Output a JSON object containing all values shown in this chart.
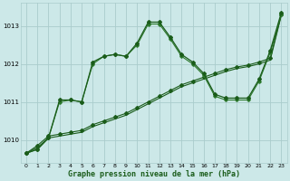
{
  "title": "Graphe pression niveau de la mer (hPa)",
  "background_color": "#cce8e8",
  "grid_color": "#aacccc",
  "line_color_dark": "#1a5c1a",
  "line_color_mid": "#2d7a2d",
  "xlim": [
    -0.5,
    23.5
  ],
  "ylim": [
    1009.4,
    1013.6
  ],
  "yticks": [
    1010,
    1011,
    1012,
    1013
  ],
  "xticks": [
    0,
    1,
    2,
    3,
    4,
    5,
    6,
    7,
    8,
    9,
    10,
    11,
    12,
    13,
    14,
    15,
    16,
    17,
    18,
    19,
    20,
    21,
    22,
    23
  ],
  "s1_x": [
    0,
    1,
    2,
    3,
    4,
    5,
    6,
    7,
    8,
    9,
    10,
    11,
    12,
    13,
    14,
    15,
    16,
    17,
    18,
    19,
    20,
    21,
    22,
    23
  ],
  "s1_y": [
    1009.65,
    1009.75,
    1010.05,
    1011.0,
    1011.05,
    1011.0,
    1012.0,
    1012.2,
    1012.25,
    1012.2,
    1012.5,
    1013.05,
    1013.05,
    1012.65,
    1012.2,
    1012.0,
    1011.7,
    1011.15,
    1011.05,
    1011.05,
    1011.05,
    1011.55,
    1012.3,
    1013.3
  ],
  "s2_x": [
    0,
    1,
    2,
    3,
    4,
    5,
    6,
    7,
    8,
    9,
    10,
    11,
    12,
    13,
    14,
    15,
    16,
    17,
    18,
    19,
    20,
    21,
    22,
    23
  ],
  "s2_y": [
    1009.65,
    1009.75,
    1010.05,
    1011.05,
    1011.05,
    1011.0,
    1012.05,
    1012.2,
    1012.25,
    1012.2,
    1012.55,
    1013.1,
    1013.1,
    1012.7,
    1012.25,
    1012.05,
    1011.75,
    1011.2,
    1011.1,
    1011.1,
    1011.1,
    1011.6,
    1012.35,
    1013.35
  ],
  "s3_x": [
    0,
    1,
    2,
    3,
    4,
    5,
    6,
    7,
    8,
    9,
    10,
    11,
    12,
    13,
    14,
    15,
    16,
    17,
    18,
    19,
    20,
    21,
    22,
    23
  ],
  "s3_y": [
    1009.65,
    1009.85,
    1010.1,
    1010.15,
    1010.2,
    1010.25,
    1010.4,
    1010.5,
    1010.6,
    1010.7,
    1010.85,
    1011.0,
    1011.15,
    1011.3,
    1011.45,
    1011.55,
    1011.65,
    1011.75,
    1011.85,
    1011.92,
    1011.97,
    1012.05,
    1012.15,
    1013.3
  ],
  "s4_x": [
    0,
    1,
    2,
    3,
    4,
    5,
    6,
    7,
    8,
    9,
    10,
    11,
    12,
    13,
    14,
    15,
    16,
    17,
    18,
    19,
    20,
    21,
    22,
    23
  ],
  "s4_y": [
    1009.65,
    1009.8,
    1010.05,
    1010.1,
    1010.15,
    1010.2,
    1010.35,
    1010.45,
    1010.55,
    1010.65,
    1010.8,
    1010.95,
    1011.1,
    1011.25,
    1011.4,
    1011.5,
    1011.6,
    1011.7,
    1011.8,
    1011.88,
    1011.93,
    1012.0,
    1012.1,
    1013.28
  ]
}
